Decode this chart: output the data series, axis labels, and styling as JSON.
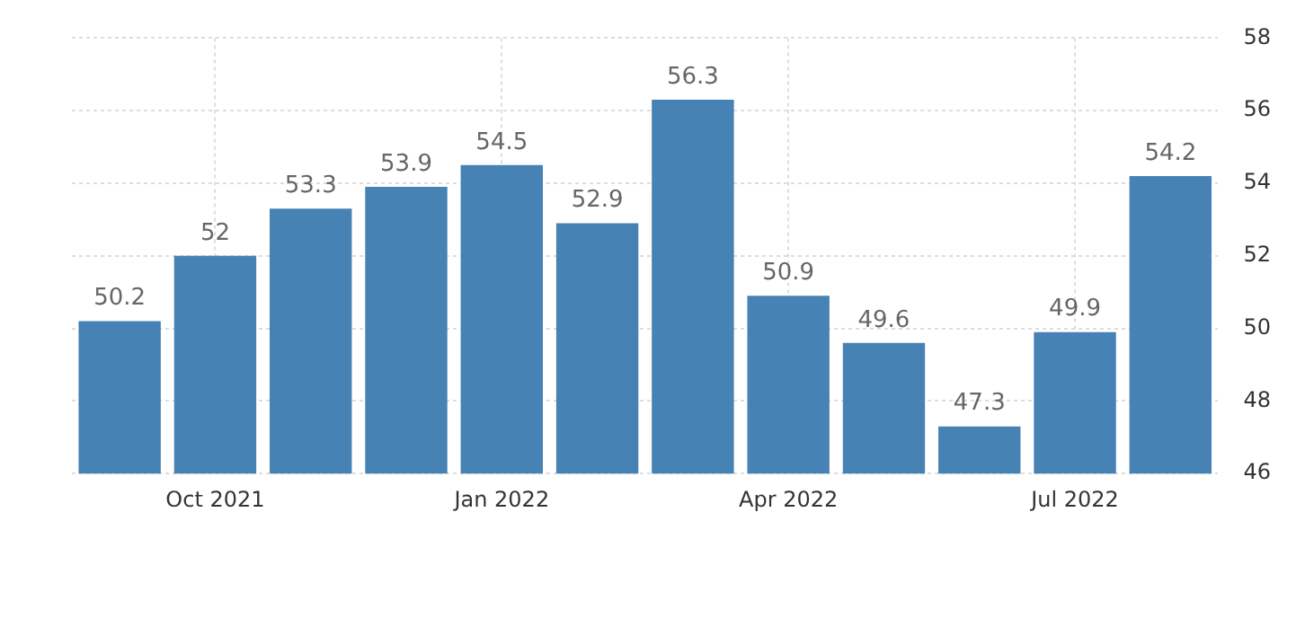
{
  "chart_data": {
    "type": "bar",
    "categories": [
      null,
      "Oct 2021",
      null,
      null,
      "Jan 2022",
      null,
      null,
      "Apr 2022",
      null,
      null,
      "Jul 2022",
      null
    ],
    "values": [
      50.2,
      52,
      53.3,
      53.9,
      54.5,
      52.9,
      56.3,
      50.9,
      49.6,
      47.3,
      49.9,
      54.2
    ],
    "color": "#4682b4",
    "ylim": [
      46,
      58
    ],
    "yticks": [
      46,
      48,
      50,
      52,
      54,
      56,
      58
    ],
    "grid": true,
    "data_labels": true
  }
}
